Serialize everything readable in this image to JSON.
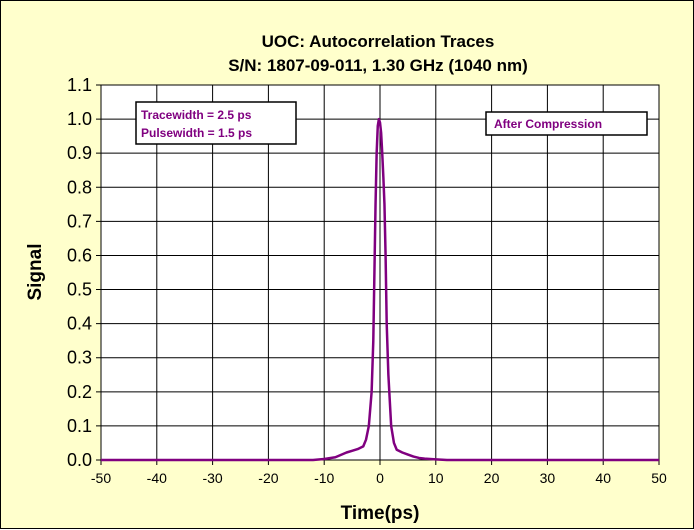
{
  "chart_data": {
    "type": "line",
    "title": "UOC: Autocorrelation Traces",
    "subtitle": "S/N: 1807-09-011,  1.30 GHz (1040 nm)",
    "xlabel": "Time(ps)",
    "ylabel": "Signal",
    "xlim": [
      -50,
      50
    ],
    "ylim": [
      0.0,
      1.1
    ],
    "xticks": [
      "-50",
      "-40",
      "-30",
      "-20",
      "-10",
      "0",
      "10",
      "20",
      "30",
      "40",
      "50"
    ],
    "yticks": [
      "0.0",
      "0.1",
      "0.2",
      "0.3",
      "0.4",
      "0.5",
      "0.6",
      "0.7",
      "0.8",
      "0.9",
      "1.0",
      "1.1"
    ],
    "grid": true,
    "annotations": [
      {
        "lines": [
          "Tracewidth = 2.5 ps",
          "Pulsewidth = 1.5 ps"
        ],
        "placement": "top-left"
      },
      {
        "lines": [
          "After Compression"
        ],
        "placement": "top-right"
      }
    ],
    "series": [
      {
        "x": [
          -50,
          -20,
          -12,
          -10,
          -8,
          -7,
          -6,
          -5,
          -4,
          -3,
          -2.5,
          -2,
          -1.5,
          -1.2,
          -1,
          -0.8,
          -0.6,
          -0.4,
          -0.2,
          0,
          0.2,
          0.4,
          0.6,
          0.8,
          1,
          1.2,
          1.5,
          2,
          2.5,
          3,
          4,
          5,
          6,
          7,
          8,
          10,
          12,
          20,
          50
        ],
        "y": [
          0.0,
          0.0,
          0.0,
          0.003,
          0.008,
          0.015,
          0.022,
          0.027,
          0.032,
          0.04,
          0.06,
          0.1,
          0.2,
          0.35,
          0.55,
          0.75,
          0.9,
          0.98,
          1.0,
          0.99,
          0.96,
          0.9,
          0.83,
          0.75,
          0.6,
          0.4,
          0.25,
          0.1,
          0.05,
          0.03,
          0.022,
          0.016,
          0.01,
          0.006,
          0.004,
          0.002,
          0.0,
          0.0,
          0.0
        ]
      }
    ]
  },
  "colors": {
    "background": "#FFFFCC",
    "plot_area": "#FFFFFF",
    "grid": "#000000",
    "trace": "#800080",
    "annotation_text": "#800080"
  }
}
